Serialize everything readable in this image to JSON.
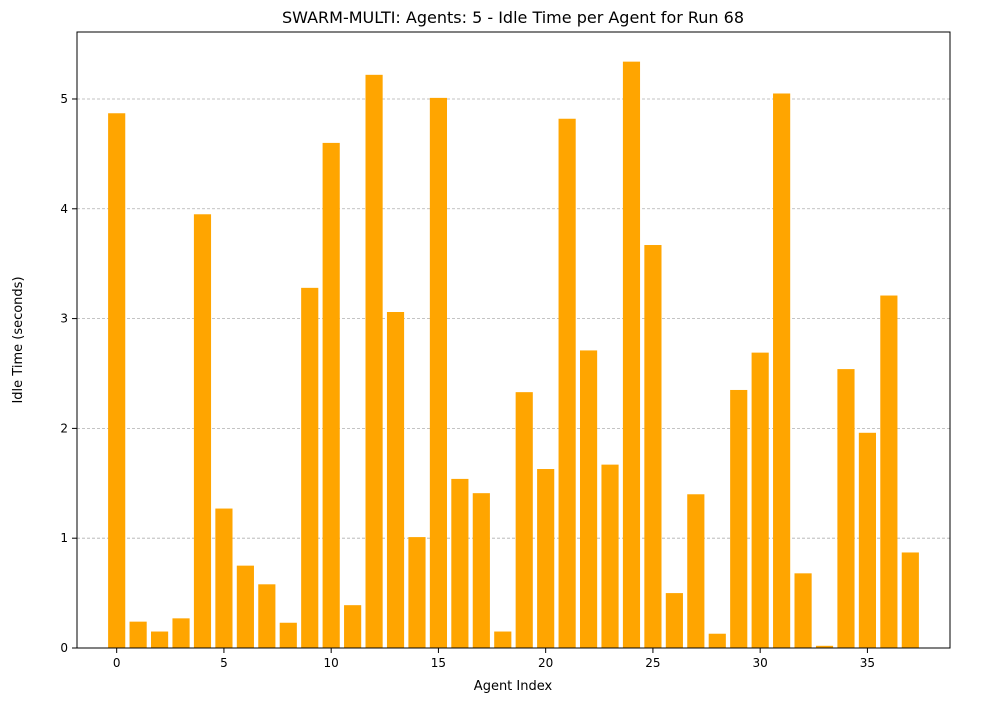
{
  "chart_data": {
    "type": "bar",
    "title": "SWARM-MULTI: Agents: 5 - Idle Time per Agent for Run 68",
    "xlabel": "Agent Index",
    "ylabel": "Idle Time (seconds)",
    "x": [
      0,
      1,
      2,
      3,
      4,
      5,
      6,
      7,
      8,
      9,
      10,
      11,
      12,
      13,
      14,
      15,
      16,
      17,
      18,
      19,
      20,
      21,
      22,
      23,
      24,
      25,
      26,
      27,
      28,
      29,
      30,
      31,
      32,
      33,
      34,
      35,
      36,
      37
    ],
    "values": [
      4.87,
      0.24,
      0.15,
      0.27,
      3.95,
      1.27,
      0.75,
      0.58,
      0.23,
      3.28,
      4.6,
      0.39,
      5.22,
      3.06,
      1.01,
      5.01,
      1.54,
      1.41,
      0.15,
      2.33,
      1.63,
      4.82,
      2.71,
      1.67,
      5.34,
      3.67,
      0.5,
      1.4,
      0.13,
      2.35,
      2.69,
      5.05,
      0.68,
      0.02,
      2.54,
      1.96,
      3.21,
      0.87
    ],
    "xlim": [
      -1.85,
      38.85
    ],
    "ylim": [
      0,
      5.61
    ],
    "x_ticks": [
      0,
      5,
      10,
      15,
      20,
      25,
      30,
      35
    ],
    "y_ticks": [
      0,
      1,
      2,
      3,
      4,
      5
    ],
    "bar_color": "#FFA500",
    "grid": "y-axis dashed"
  }
}
